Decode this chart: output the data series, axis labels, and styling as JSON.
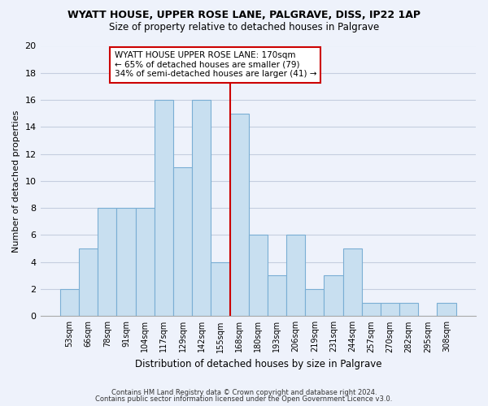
{
  "title": "WYATT HOUSE, UPPER ROSE LANE, PALGRAVE, DISS, IP22 1AP",
  "subtitle": "Size of property relative to detached houses in Palgrave",
  "xlabel": "Distribution of detached houses by size in Palgrave",
  "ylabel": "Number of detached properties",
  "bin_labels": [
    "53sqm",
    "66sqm",
    "78sqm",
    "91sqm",
    "104sqm",
    "117sqm",
    "129sqm",
    "142sqm",
    "155sqm",
    "168sqm",
    "180sqm",
    "193sqm",
    "206sqm",
    "219sqm",
    "231sqm",
    "244sqm",
    "257sqm",
    "270sqm",
    "282sqm",
    "295sqm",
    "308sqm"
  ],
  "bar_heights": [
    2,
    5,
    8,
    8,
    8,
    16,
    11,
    16,
    4,
    15,
    6,
    3,
    6,
    2,
    3,
    5,
    1,
    1,
    1,
    0,
    1
  ],
  "bar_color": "#c8dff0",
  "bar_edge_color": "#7aaed4",
  "highlight_bin_index": 9,
  "highlight_line_color": "#cc0000",
  "ylim": [
    0,
    20
  ],
  "yticks": [
    0,
    2,
    4,
    6,
    8,
    10,
    12,
    14,
    16,
    18,
    20
  ],
  "annotation_line1": "WYATT HOUSE UPPER ROSE LANE: 170sqm",
  "annotation_line2": "← 65% of detached houses are smaller (79)",
  "annotation_line3": "34% of semi-detached houses are larger (41) →",
  "annotation_box_color": "#ffffff",
  "annotation_box_edge": "#cc0000",
  "footer_line1": "Contains HM Land Registry data © Crown copyright and database right 2024.",
  "footer_line2": "Contains public sector information licensed under the Open Government Licence v3.0.",
  "background_color": "#eef2fb",
  "grid_color": "#c5cedf"
}
